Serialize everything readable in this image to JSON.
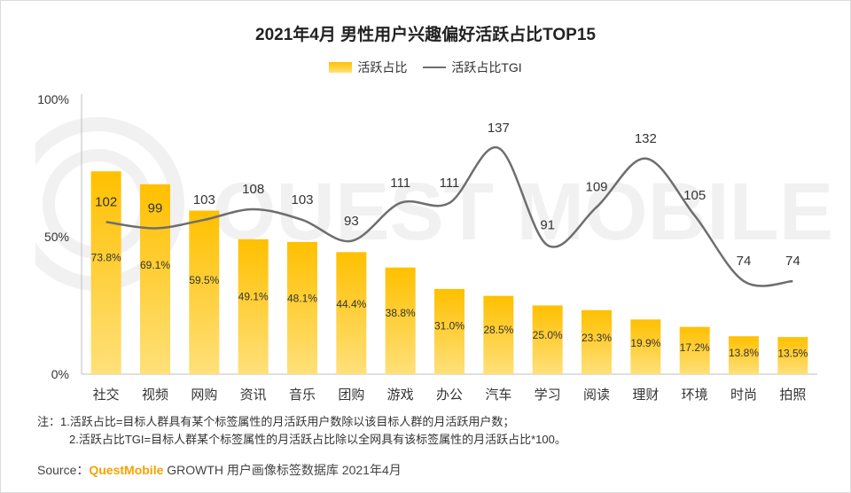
{
  "title": "2021年4月 男性用户兴趣偏好活跃占比TOP15",
  "legend": {
    "bar": "活跃占比",
    "line": "活跃占比TGI"
  },
  "watermark_text": "QUEST MOBILE",
  "notes": {
    "line1": "注：1.活跃占比=目标人群具有某个标签属性的月活跃用户数除以该目标人群的月活跃用户数；",
    "line2": "2.活跃占比TGI=目标人群某个标签属性的月活跃占比除以全网具有该标签属性的月活跃占比*100。"
  },
  "source": {
    "prefix": "Source：",
    "brand": "QuestMobile",
    "rest": " GROWTH 用户画像标签数据库 2021年4月"
  },
  "colors": {
    "bar_top": "#FFC000",
    "bar_bottom": "#FFE07A",
    "line": "#6e6e6e"
  },
  "chart_data": {
    "type": "bar+line",
    "title": "2021年4月 男性用户兴趣偏好活跃占比TOP15",
    "categories": [
      "社交",
      "视频",
      "网购",
      "资讯",
      "音乐",
      "团购",
      "游戏",
      "办公",
      "汽车",
      "学习",
      "阅读",
      "理财",
      "环境",
      "时尚",
      "拍照"
    ],
    "series": [
      {
        "name": "活跃占比",
        "type": "bar",
        "values": [
          73.8,
          69.1,
          59.5,
          49.1,
          48.1,
          44.4,
          38.8,
          31.0,
          28.5,
          25.0,
          23.3,
          19.9,
          17.2,
          13.8,
          13.5
        ],
        "labels": [
          "73.8%",
          "69.1%",
          "59.5%",
          "49.1%",
          "48.1%",
          "44.4%",
          "38.8%",
          "31.0%",
          "28.5%",
          "25.0%",
          "23.3%",
          "19.9%",
          "17.2%",
          "13.8%",
          "13.5%"
        ]
      },
      {
        "name": "活跃占比TGI",
        "type": "line",
        "values": [
          102,
          99,
          103,
          108,
          103,
          93,
          111,
          111,
          137,
          91,
          109,
          132,
          105,
          74,
          74
        ]
      }
    ],
    "y_ticks": [
      "100%",
      "50%",
      "0%"
    ],
    "ylim": [
      0,
      100
    ],
    "tgi_range": [
      30,
      160
    ]
  }
}
